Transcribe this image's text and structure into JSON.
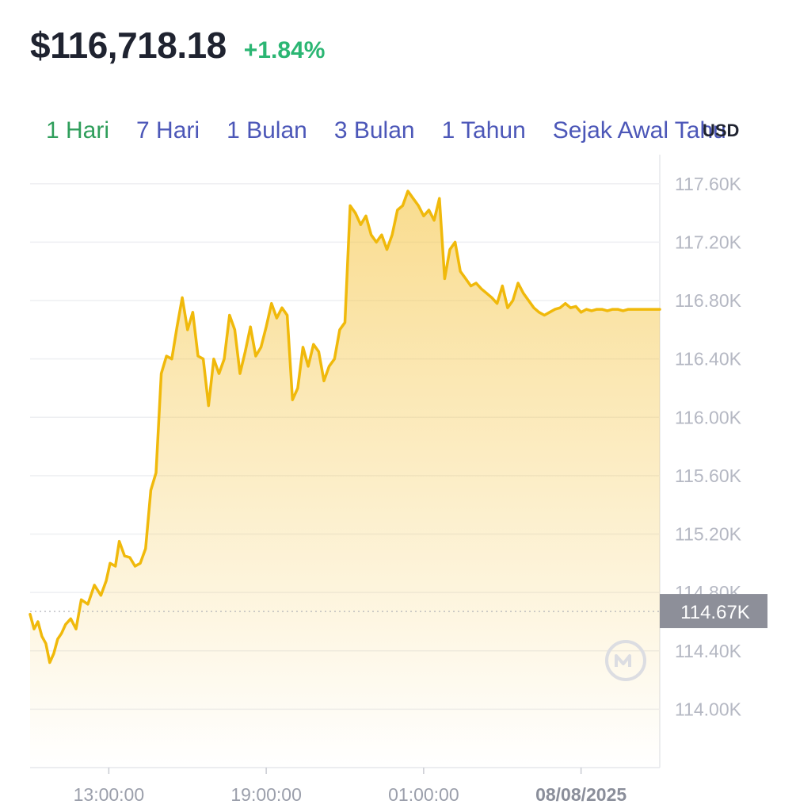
{
  "header": {
    "price": "$116,718.18",
    "change": "+1.84%"
  },
  "tabs": [
    {
      "label": "1 Hari",
      "active": true
    },
    {
      "label": "7 Hari",
      "active": false
    },
    {
      "label": "1 Bulan",
      "active": false
    },
    {
      "label": "3 Bulan",
      "active": false
    },
    {
      "label": "1 Tahun",
      "active": false
    },
    {
      "label": "Sejak Awal Tahu",
      "active": false
    }
  ],
  "currency_label": "USD",
  "colors": {
    "line": "#f0b90b",
    "up": "#2bb673",
    "tab_active": "#2f9e5b",
    "tab": "#4c57b8",
    "ref_tag": "#8d8f99"
  },
  "chart_data": {
    "type": "area",
    "title": "",
    "xlabel": "",
    "ylabel": "",
    "ylim": [
      113.6,
      117.8
    ],
    "y_ticks": [
      117.6,
      117.2,
      116.8,
      116.4,
      116.0,
      115.6,
      115.2,
      114.8,
      114.4,
      114.0
    ],
    "y_tick_labels": [
      "117.60K",
      "117.20K",
      "116.80K",
      "116.40K",
      "116.00K",
      "115.60K",
      "115.20K",
      "114.80K",
      "114.40K",
      "114.00K"
    ],
    "x_range_hours": [
      10,
      34
    ],
    "x_ticks": [
      13,
      19,
      25,
      31
    ],
    "x_tick_labels": [
      "13:00:00",
      "19:00:00",
      "01:00:00",
      "08/08/2025"
    ],
    "reference_value": 114.67,
    "reference_label": "114.67K",
    "grid": true,
    "series": [
      {
        "x": [
          10.0,
          10.15,
          10.3,
          10.45,
          10.6,
          10.75,
          10.9,
          11.05,
          11.2,
          11.35,
          11.55,
          11.75,
          11.95,
          12.2,
          12.45,
          12.7,
          12.9,
          13.05,
          13.25,
          13.4,
          13.6,
          13.8,
          14.0,
          14.2,
          14.4,
          14.6,
          14.8,
          15.0,
          15.2,
          15.4,
          15.6,
          15.8,
          16.0,
          16.2,
          16.4,
          16.6,
          16.8,
          17.0,
          17.2,
          17.4,
          17.6,
          17.8,
          18.0,
          18.2,
          18.4,
          18.6,
          18.8,
          19.0,
          19.2,
          19.4,
          19.6,
          19.8,
          20.0,
          20.2,
          20.4,
          20.6,
          20.8,
          21.0,
          21.2,
          21.4,
          21.6,
          21.8,
          22.0,
          22.2,
          22.4,
          22.6,
          22.8,
          23.0,
          23.2,
          23.4,
          23.6,
          23.8,
          24.0,
          24.2,
          24.4,
          24.6,
          24.8,
          25.0,
          25.2,
          25.4,
          25.6,
          25.8,
          26.0,
          26.2,
          26.4,
          26.6,
          26.8,
          27.0,
          27.2,
          27.4,
          27.6,
          27.8,
          28.0,
          28.2,
          28.4,
          28.6,
          28.8,
          29.0,
          29.2,
          29.4,
          29.6,
          29.8,
          30.0,
          30.2,
          30.4,
          30.6,
          30.8,
          31.0,
          31.2,
          31.4,
          31.6,
          31.8,
          32.0,
          32.2,
          32.4,
          32.6,
          32.8,
          33.0,
          33.2,
          33.4,
          33.6,
          33.8,
          34.0
        ],
        "y": [
          114.65,
          114.55,
          114.6,
          114.5,
          114.45,
          114.32,
          114.38,
          114.48,
          114.52,
          114.58,
          114.62,
          114.55,
          114.75,
          114.72,
          114.85,
          114.78,
          114.88,
          115.0,
          114.98,
          115.15,
          115.05,
          115.04,
          114.98,
          115.0,
          115.1,
          115.5,
          115.62,
          116.3,
          116.42,
          116.4,
          116.62,
          116.82,
          116.6,
          116.72,
          116.42,
          116.4,
          116.08,
          116.4,
          116.3,
          116.4,
          116.7,
          116.6,
          116.3,
          116.45,
          116.62,
          116.42,
          116.48,
          116.62,
          116.78,
          116.68,
          116.75,
          116.7,
          116.12,
          116.2,
          116.48,
          116.35,
          116.5,
          116.45,
          116.25,
          116.35,
          116.4,
          116.6,
          116.65,
          117.45,
          117.4,
          117.32,
          117.38,
          117.25,
          117.2,
          117.25,
          117.15,
          117.25,
          117.42,
          117.45,
          117.55,
          117.5,
          117.45,
          117.38,
          117.42,
          117.35,
          117.5,
          116.95,
          117.15,
          117.2,
          117.0,
          116.95,
          116.9,
          116.92,
          116.88,
          116.85,
          116.82,
          116.78,
          116.9,
          116.75,
          116.8,
          116.92,
          116.85,
          116.8,
          116.75,
          116.72,
          116.7,
          116.72,
          116.74,
          116.75,
          116.78,
          116.75,
          116.76,
          116.72,
          116.74,
          116.73,
          116.74,
          116.74,
          116.73,
          116.74,
          116.74,
          116.73,
          116.74,
          116.74,
          116.74,
          116.74,
          116.74,
          116.74,
          116.74
        ]
      }
    ]
  }
}
